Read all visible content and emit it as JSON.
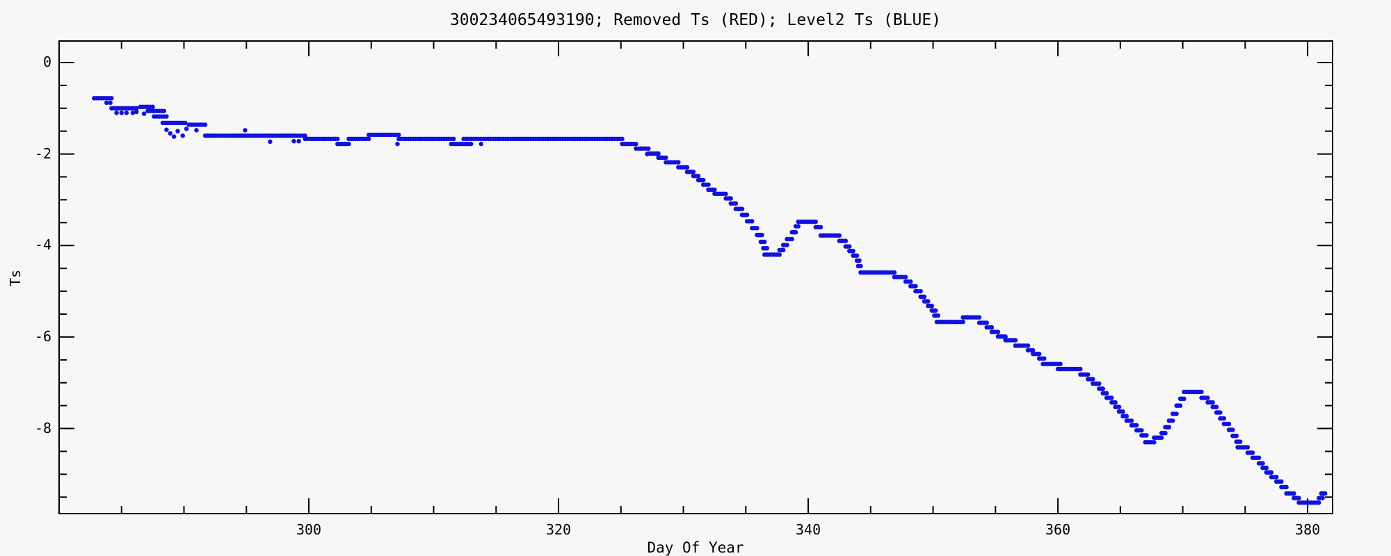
{
  "title": "300234065493190; Removed Ts (RED); Level2 Ts (BLUE)",
  "colors": {
    "background": "#F7F7F7",
    "axis": "#000000",
    "level2_series": "#1212DE",
    "removed_series": "#DC1414"
  },
  "chart_data": {
    "type": "scatter",
    "title": "300234065493190; Removed Ts (RED); Level2 Ts (BLUE)",
    "xlabel": "Day Of Year",
    "ylabel": "Ts",
    "xlim": [
      280,
      382
    ],
    "ylim": [
      -9.86,
      0.47
    ],
    "grid": false,
    "legend_position": "in-title",
    "x_major_ticks": [
      300,
      320,
      340,
      360,
      380
    ],
    "x_tick_labels": [
      "300",
      "320",
      "340",
      "360",
      "380"
    ],
    "x_minor_step": 5,
    "y_major_ticks": [
      0,
      -2,
      -4,
      -6,
      -8
    ],
    "y_tick_labels": [
      "0",
      "-2",
      "-4",
      "-6",
      "-8"
    ],
    "y_minor_step": 0.5,
    "marker": "filled-circle",
    "marker_diameter_px": 6.5,
    "series": [
      {
        "name": "Level2 Ts",
        "color": "#1212DE",
        "segments": [
          [
            282.8,
            284.2,
            -0.78
          ],
          [
            284.2,
            286.2,
            -1.0
          ],
          [
            286.5,
            287.5,
            -0.97
          ],
          [
            287.1,
            288.4,
            -1.06
          ],
          [
            287.6,
            288.6,
            -1.18
          ],
          [
            288.3,
            290.1,
            -1.32
          ],
          [
            290.4,
            291.7,
            -1.36
          ],
          [
            291.7,
            299.7,
            -1.6
          ],
          [
            299.7,
            302.3,
            -1.67
          ],
          [
            302.3,
            303.2,
            -1.78
          ],
          [
            303.2,
            304.8,
            -1.67
          ],
          [
            304.8,
            307.2,
            -1.58
          ],
          [
            307.2,
            311.6,
            -1.67
          ],
          [
            311.4,
            313.0,
            -1.78
          ],
          [
            312.4,
            325.1,
            -1.67
          ],
          [
            325.1,
            326.2,
            -1.78
          ],
          [
            326.2,
            327.2,
            -1.88
          ],
          [
            327.2,
            328.0,
            -1.99
          ],
          [
            328.0,
            328.6,
            -2.08
          ],
          [
            328.6,
            329.6,
            -2.18
          ],
          [
            329.6,
            330.3,
            -2.29
          ],
          [
            330.3,
            330.8,
            -2.39
          ],
          [
            330.8,
            331.2,
            -2.48
          ],
          [
            331.2,
            331.6,
            -2.57
          ],
          [
            331.6,
            332.0,
            -2.67
          ],
          [
            332.0,
            332.5,
            -2.78
          ],
          [
            332.5,
            333.4,
            -2.87
          ],
          [
            333.4,
            333.8,
            -2.97
          ],
          [
            333.8,
            334.2,
            -3.08
          ],
          [
            334.2,
            334.7,
            -3.2
          ],
          [
            334.7,
            335.1,
            -3.33
          ],
          [
            335.1,
            335.5,
            -3.47
          ],
          [
            335.5,
            335.9,
            -3.62
          ],
          [
            335.9,
            336.3,
            -3.77
          ],
          [
            336.2,
            336.5,
            -3.92
          ],
          [
            336.4,
            336.7,
            -4.06
          ],
          [
            336.5,
            337.7,
            -4.2
          ],
          [
            337.7,
            338.0,
            -4.1
          ],
          [
            338.0,
            338.3,
            -3.99
          ],
          [
            338.3,
            338.7,
            -3.86
          ],
          [
            338.7,
            339.0,
            -3.71
          ],
          [
            339.0,
            339.2,
            -3.58
          ],
          [
            339.2,
            340.6,
            -3.48
          ],
          [
            340.6,
            341.0,
            -3.6
          ],
          [
            341.0,
            342.5,
            -3.78
          ],
          [
            342.5,
            343.0,
            -3.9
          ],
          [
            343.0,
            343.3,
            -4.02
          ],
          [
            343.3,
            343.6,
            -4.12
          ],
          [
            343.6,
            343.9,
            -4.22
          ],
          [
            343.9,
            344.1,
            -4.33
          ],
          [
            344.0,
            344.2,
            -4.45
          ],
          [
            344.2,
            346.9,
            -4.59
          ],
          [
            346.9,
            347.8,
            -4.69
          ],
          [
            347.8,
            348.2,
            -4.79
          ],
          [
            348.2,
            348.6,
            -4.89
          ],
          [
            348.6,
            349.0,
            -5.0
          ],
          [
            349.0,
            349.3,
            -5.12
          ],
          [
            349.3,
            349.6,
            -5.22
          ],
          [
            349.6,
            349.9,
            -5.32
          ],
          [
            349.9,
            350.2,
            -5.42
          ],
          [
            350.1,
            350.4,
            -5.53
          ],
          [
            350.3,
            352.4,
            -5.67
          ],
          [
            352.4,
            353.7,
            -5.57
          ],
          [
            353.7,
            354.3,
            -5.69
          ],
          [
            354.3,
            354.7,
            -5.79
          ],
          [
            354.7,
            355.2,
            -5.89
          ],
          [
            355.2,
            355.8,
            -5.99
          ],
          [
            355.8,
            356.6,
            -6.07
          ],
          [
            356.6,
            357.6,
            -6.19
          ],
          [
            357.6,
            358.0,
            -6.29
          ],
          [
            358.0,
            358.5,
            -6.37
          ],
          [
            358.5,
            358.9,
            -6.47
          ],
          [
            358.8,
            360.2,
            -6.59
          ],
          [
            360.0,
            361.8,
            -6.7
          ],
          [
            361.8,
            362.4,
            -6.82
          ],
          [
            362.4,
            362.8,
            -6.92
          ],
          [
            362.8,
            363.3,
            -7.02
          ],
          [
            363.3,
            363.6,
            -7.13
          ],
          [
            363.6,
            363.9,
            -7.23
          ],
          [
            363.9,
            364.3,
            -7.33
          ],
          [
            364.3,
            364.6,
            -7.43
          ],
          [
            364.6,
            364.9,
            -7.53
          ],
          [
            364.9,
            365.2,
            -7.63
          ],
          [
            365.2,
            365.5,
            -7.73
          ],
          [
            365.5,
            365.9,
            -7.83
          ],
          [
            365.9,
            366.3,
            -7.93
          ],
          [
            366.3,
            366.7,
            -8.04
          ],
          [
            366.7,
            367.1,
            -8.15
          ],
          [
            367.0,
            367.7,
            -8.3
          ],
          [
            367.7,
            368.3,
            -8.2
          ],
          [
            368.3,
            368.6,
            -8.1
          ],
          [
            368.6,
            368.9,
            -7.97
          ],
          [
            368.9,
            369.2,
            -7.83
          ],
          [
            369.2,
            369.5,
            -7.68
          ],
          [
            369.5,
            369.8,
            -7.5
          ],
          [
            369.8,
            370.1,
            -7.35
          ],
          [
            370.1,
            371.5,
            -7.2
          ],
          [
            371.5,
            372.0,
            -7.33
          ],
          [
            372.0,
            372.4,
            -7.43
          ],
          [
            372.4,
            372.7,
            -7.53
          ],
          [
            372.7,
            373.0,
            -7.65
          ],
          [
            373.0,
            373.3,
            -7.78
          ],
          [
            373.3,
            373.7,
            -7.9
          ],
          [
            373.7,
            374.0,
            -8.03
          ],
          [
            374.0,
            374.3,
            -8.16
          ],
          [
            374.3,
            374.6,
            -8.29
          ],
          [
            374.4,
            375.2,
            -8.41
          ],
          [
            375.2,
            375.6,
            -8.53
          ],
          [
            375.6,
            376.1,
            -8.64
          ],
          [
            376.1,
            376.4,
            -8.76
          ],
          [
            376.4,
            376.7,
            -8.86
          ],
          [
            376.7,
            377.1,
            -8.96
          ],
          [
            377.1,
            377.5,
            -9.06
          ],
          [
            377.5,
            377.9,
            -9.16
          ],
          [
            377.9,
            378.3,
            -9.28
          ],
          [
            378.3,
            378.9,
            -9.42
          ],
          [
            378.9,
            379.3,
            -9.52
          ],
          [
            379.3,
            380.9,
            -9.62
          ],
          [
            380.9,
            381.2,
            -9.52
          ],
          [
            381.1,
            381.4,
            -9.42
          ]
        ],
        "extra_points": [
          [
            283.8,
            -0.88
          ],
          [
            284.1,
            -0.88
          ],
          [
            284.6,
            -1.1
          ],
          [
            285.0,
            -1.1
          ],
          [
            285.4,
            -1.1
          ],
          [
            285.9,
            -1.1
          ],
          [
            286.2,
            -1.08
          ],
          [
            286.8,
            -1.12
          ],
          [
            288.6,
            -1.47
          ],
          [
            288.9,
            -1.55
          ],
          [
            289.2,
            -1.62
          ],
          [
            289.5,
            -1.5
          ],
          [
            289.9,
            -1.6
          ],
          [
            290.2,
            -1.45
          ],
          [
            291.0,
            -1.48
          ],
          [
            294.9,
            -1.48
          ],
          [
            296.9,
            -1.73
          ],
          [
            298.8,
            -1.72
          ],
          [
            299.2,
            -1.72
          ],
          [
            307.1,
            -1.78
          ],
          [
            313.8,
            -1.78
          ],
          [
            327.1,
            -2.0
          ]
        ]
      },
      {
        "name": "Removed Ts",
        "color": "#DC1414",
        "segments": [],
        "extra_points": []
      }
    ]
  }
}
